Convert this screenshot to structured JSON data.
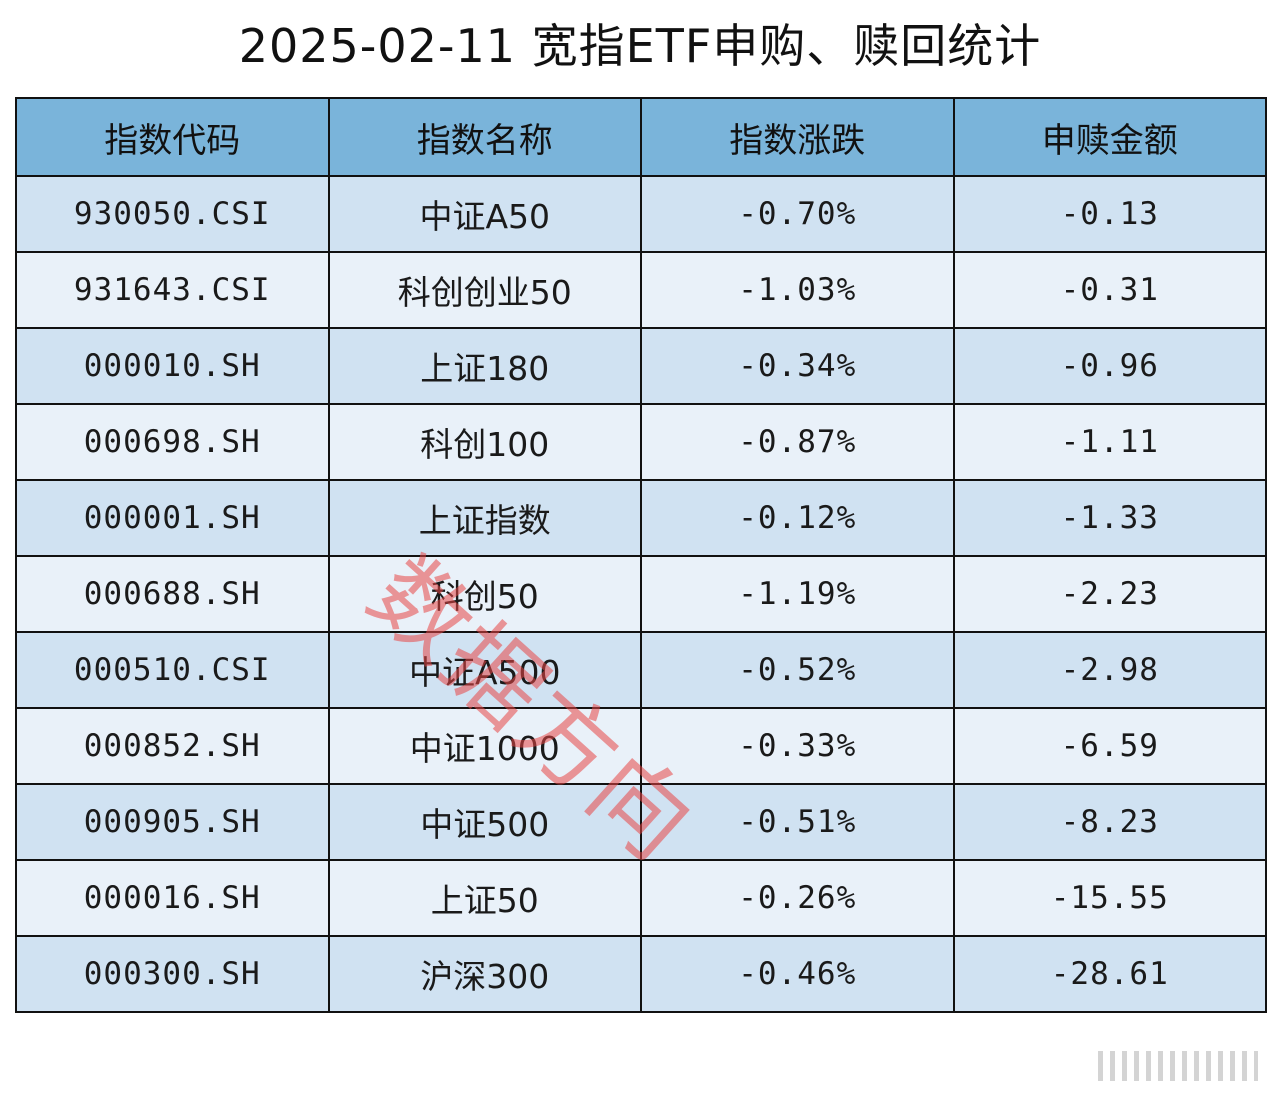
{
  "title": "2025-02-11 宽指ETF申购、赎回统计",
  "headers": [
    "指数代码",
    "指数名称",
    "指数涨跌",
    "申赎金额"
  ],
  "rows": [
    {
      "code": "930050.CSI",
      "name": "中证A50",
      "change": "-0.70%",
      "amount": "-0.13"
    },
    {
      "code": "931643.CSI",
      "name": "科创创业50",
      "change": "-1.03%",
      "amount": "-0.31"
    },
    {
      "code": "000010.SH",
      "name": "上证180",
      "change": "-0.34%",
      "amount": "-0.96"
    },
    {
      "code": "000698.SH",
      "name": "科创100",
      "change": "-0.87%",
      "amount": "-1.11"
    },
    {
      "code": "000001.SH",
      "name": "上证指数",
      "change": "-0.12%",
      "amount": "-1.33"
    },
    {
      "code": "000688.SH",
      "name": "科创50",
      "change": "-1.19%",
      "amount": "-2.23"
    },
    {
      "code": "000510.CSI",
      "name": "中证A500",
      "change": "-0.52%",
      "amount": "-2.98"
    },
    {
      "code": "000852.SH",
      "name": "中证1000",
      "change": "-0.33%",
      "amount": "-6.59"
    },
    {
      "code": "000905.SH",
      "name": "中证500",
      "change": "-0.51%",
      "amount": "-8.23"
    },
    {
      "code": "000016.SH",
      "name": "上证50",
      "change": "-0.26%",
      "amount": "-15.55"
    },
    {
      "code": "000300.SH",
      "name": "沪深300",
      "change": "-0.46%",
      "amount": "-28.61"
    }
  ],
  "watermark": "数据方向",
  "colors": {
    "header_bg": "#7ab4da",
    "row_odd_bg": "#d0e2f2",
    "row_even_bg": "#e9f1f9",
    "watermark": "#e84646"
  }
}
